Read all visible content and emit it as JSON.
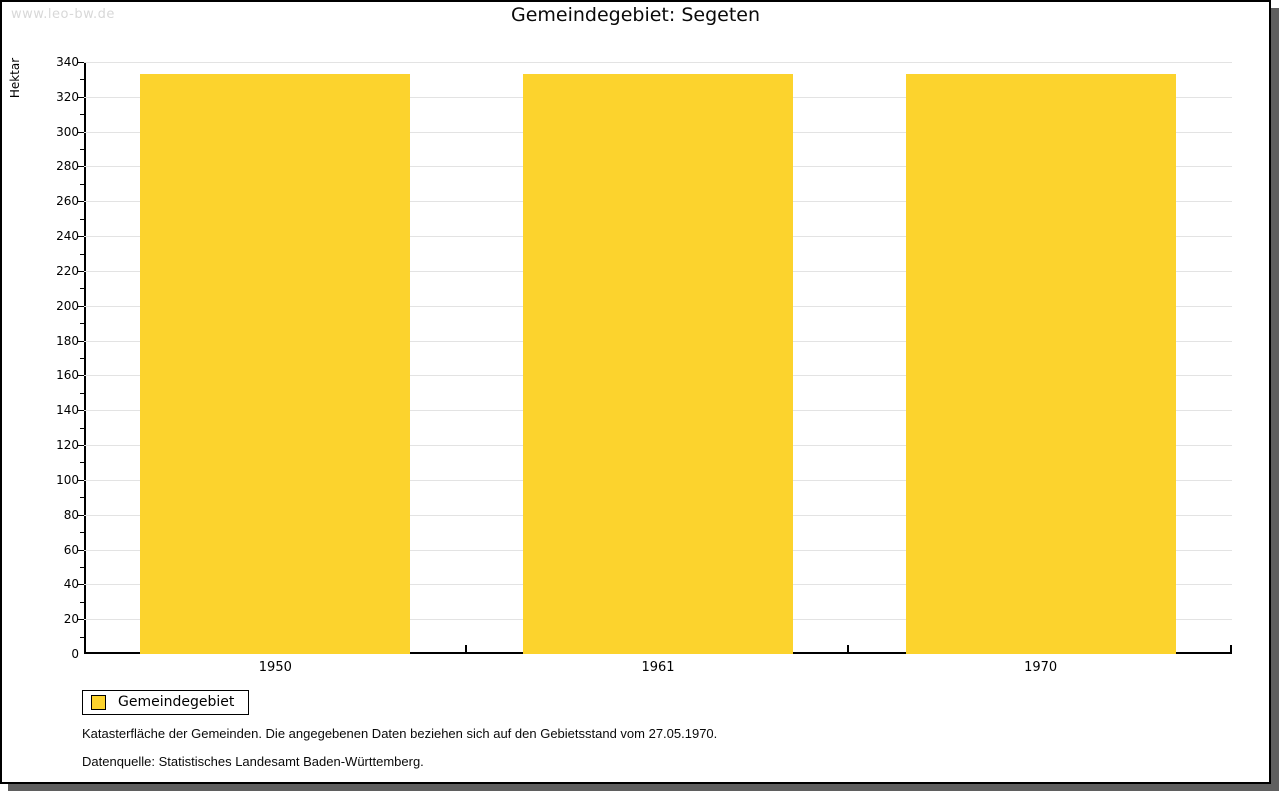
{
  "watermark": "www.leo-bw.de",
  "title": "Gemeindegebiet: Segeten",
  "legend": {
    "label": "Gemeindegebiet"
  },
  "footnotes": [
    "Katasterfläche der Gemeinden. Die angegebenen Daten beziehen sich auf den Gebietsstand vom 27.05.1970.",
    "Datenquelle: Statistisches Landesamt Baden-Württemberg."
  ],
  "colors": {
    "bar": "#FCD32D",
    "grid": "#E3E3E3",
    "axis": "#000000",
    "frame_shadow": "#5F5F5F",
    "watermark": "#D8D8D8"
  },
  "chart_data": {
    "type": "bar",
    "categories": [
      "1950",
      "1961",
      "1970"
    ],
    "series": [
      {
        "name": "Gemeindegebiet",
        "values": [
          333,
          333,
          333
        ]
      }
    ],
    "title": "Gemeindegebiet: Segeten",
    "xlabel": "",
    "ylabel": "Hektar",
    "ylim": [
      0,
      340
    ],
    "ytick_step": 20,
    "minor_tick_step": 10,
    "grid": true,
    "legend_position": "bottom-left"
  }
}
